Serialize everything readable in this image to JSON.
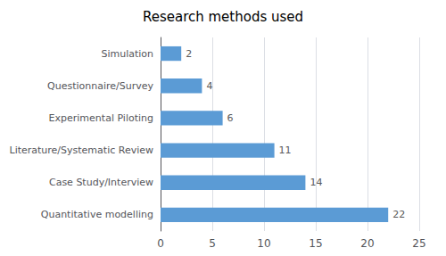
{
  "chart_data": {
    "type": "bar",
    "orientation": "horizontal",
    "title": "Research methods used",
    "categories": [
      "Simulation",
      "Questionnaire/Survey",
      "Experimental Piloting",
      "Literature/Systematic Review",
      "Case Study/Interview",
      "Quantitative modelling"
    ],
    "values": [
      2,
      4,
      6,
      11,
      14,
      22
    ],
    "color": "#5b9bd5",
    "xlim": [
      0,
      25
    ],
    "xticks": [
      0,
      5,
      10,
      15,
      20,
      25
    ],
    "grid": true,
    "data_labels": true
  }
}
